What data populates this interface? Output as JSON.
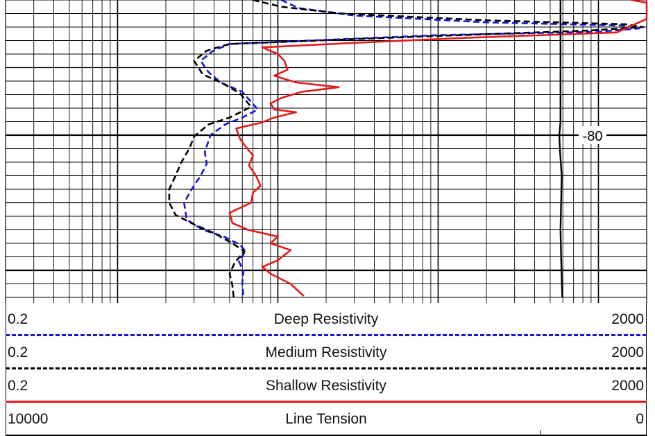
{
  "chart_data": {
    "type": "line",
    "title": "",
    "x_scale": "log",
    "xlim": [
      0.2,
      2000
    ],
    "grid": true,
    "depth_annotation": "-80",
    "series": [
      {
        "name": "Deep Resistivity",
        "color": "#1616d6",
        "style": "dashed",
        "points": [
          [
            10.5,
            0
          ],
          [
            13.5,
            1.2
          ],
          [
            30,
            2.3
          ],
          [
            200,
            3.3
          ],
          [
            1500,
            3.8
          ],
          [
            1800,
            4.2
          ],
          [
            1000,
            4.7
          ],
          [
            100,
            5.2
          ],
          [
            5,
            6.5
          ],
          [
            3.9,
            7.6
          ],
          [
            3.3,
            9.0
          ],
          [
            3.7,
            10.7
          ],
          [
            4.4,
            12.2
          ],
          [
            6.0,
            13.6
          ],
          [
            7.5,
            16.2
          ],
          [
            6.0,
            17.4
          ],
          [
            4.7,
            18.4
          ],
          [
            3.8,
            20.0
          ],
          [
            3.5,
            22.5
          ],
          [
            3.6,
            24.2
          ],
          [
            3.3,
            26.0
          ],
          [
            2.9,
            28.0
          ],
          [
            2.6,
            30.0
          ],
          [
            2.7,
            32.5
          ],
          [
            3.4,
            34.0
          ],
          [
            4.6,
            35.0
          ],
          [
            5.8,
            36.2
          ],
          [
            6.3,
            37.2
          ],
          [
            5.7,
            38.6
          ],
          [
            6.1,
            40.2
          ],
          [
            6.0,
            42.0
          ],
          [
            6.1,
            44.0
          ]
        ]
      },
      {
        "name": "Medium Resistivity",
        "color": "#000000",
        "style": "dashed",
        "points": [
          [
            7.0,
            0
          ],
          [
            10.5,
            1.0
          ],
          [
            25,
            2.0
          ],
          [
            200,
            3.0
          ],
          [
            1500,
            3.6
          ],
          [
            1900,
            4.0
          ],
          [
            900,
            4.5
          ],
          [
            80,
            5.4
          ],
          [
            5,
            6.5
          ],
          [
            3.6,
            7.5
          ],
          [
            3.0,
            9.0
          ],
          [
            3.4,
            11.0
          ],
          [
            4.5,
            12.3
          ],
          [
            5.8,
            13.8
          ],
          [
            6.8,
            15.8
          ],
          [
            5.0,
            17.4
          ],
          [
            3.7,
            18.4
          ],
          [
            3.0,
            20.2
          ],
          [
            2.8,
            22.0
          ],
          [
            2.5,
            24.0
          ],
          [
            2.3,
            26.0
          ],
          [
            2.1,
            28.0
          ],
          [
            2.1,
            30.0
          ],
          [
            2.3,
            31.8
          ],
          [
            3.0,
            33.2
          ],
          [
            4.0,
            34.5
          ],
          [
            5.2,
            36.0
          ],
          [
            6.2,
            37.2
          ],
          [
            5.4,
            38.8
          ],
          [
            5.0,
            40.5
          ],
          [
            5.2,
            42.2
          ],
          [
            5.3,
            44.0
          ]
        ]
      },
      {
        "name": "Shallow Resistivity",
        "color": "#e31b1b",
        "style": "solid",
        "points": [
          [
            1600,
            0
          ],
          [
            2000,
            0.4
          ],
          [
            2000,
            2.8
          ],
          [
            1300,
            4.8
          ],
          [
            150,
            5.6
          ],
          [
            40,
            6.2
          ],
          [
            8.0,
            7.0
          ],
          [
            10.0,
            8.0
          ],
          [
            11.0,
            9.0
          ],
          [
            11.5,
            10.3
          ],
          [
            9.5,
            11.2
          ],
          [
            13.0,
            12.2
          ],
          [
            24,
            12.9
          ],
          [
            14.0,
            13.6
          ],
          [
            10.5,
            14.5
          ],
          [
            9.0,
            15.3
          ],
          [
            9.5,
            16.2
          ],
          [
            13.0,
            16.6
          ],
          [
            9.5,
            17.4
          ],
          [
            7.8,
            18.2
          ],
          [
            6.5,
            18.6
          ],
          [
            5.5,
            19.0
          ],
          [
            5.8,
            20.5
          ],
          [
            6.2,
            21.5
          ],
          [
            7.0,
            23.0
          ],
          [
            6.6,
            24.5
          ],
          [
            7.3,
            26.0
          ],
          [
            7.8,
            27.5
          ],
          [
            7.0,
            28.5
          ],
          [
            6.8,
            30.0
          ],
          [
            5.0,
            31.5
          ],
          [
            5.2,
            33.0
          ],
          [
            6.5,
            34.0
          ],
          [
            10.0,
            35.0
          ],
          [
            9.0,
            36.0
          ],
          [
            12.0,
            37.0
          ],
          [
            10.0,
            38.5
          ],
          [
            8.0,
            39.5
          ],
          [
            9.0,
            40.5
          ],
          [
            12.0,
            42.0
          ],
          [
            14.5,
            43.8
          ]
        ]
      },
      {
        "name": "Line Tension",
        "color": "#000000",
        "style": "solid",
        "points": [
          [
            580,
            0
          ],
          [
            580,
            18.0
          ],
          [
            570,
            20.0
          ],
          [
            575,
            22.0
          ],
          [
            590,
            26.0
          ],
          [
            585,
            30.0
          ],
          [
            580,
            34.0
          ],
          [
            585,
            38.0
          ],
          [
            590,
            41.0
          ],
          [
            595,
            44.0
          ]
        ]
      }
    ]
  },
  "legend": {
    "deep": {
      "label": "Deep Resistivity",
      "min": "0.2",
      "max": "2000"
    },
    "medium": {
      "label": "Medium Resistivity",
      "min": "0.2",
      "max": "2000"
    },
    "shallow": {
      "label": "Shallow Resistivity",
      "min": "0.2",
      "max": "2000"
    },
    "tension": {
      "label": "Line Tension",
      "min": "10000",
      "max": "0"
    }
  }
}
